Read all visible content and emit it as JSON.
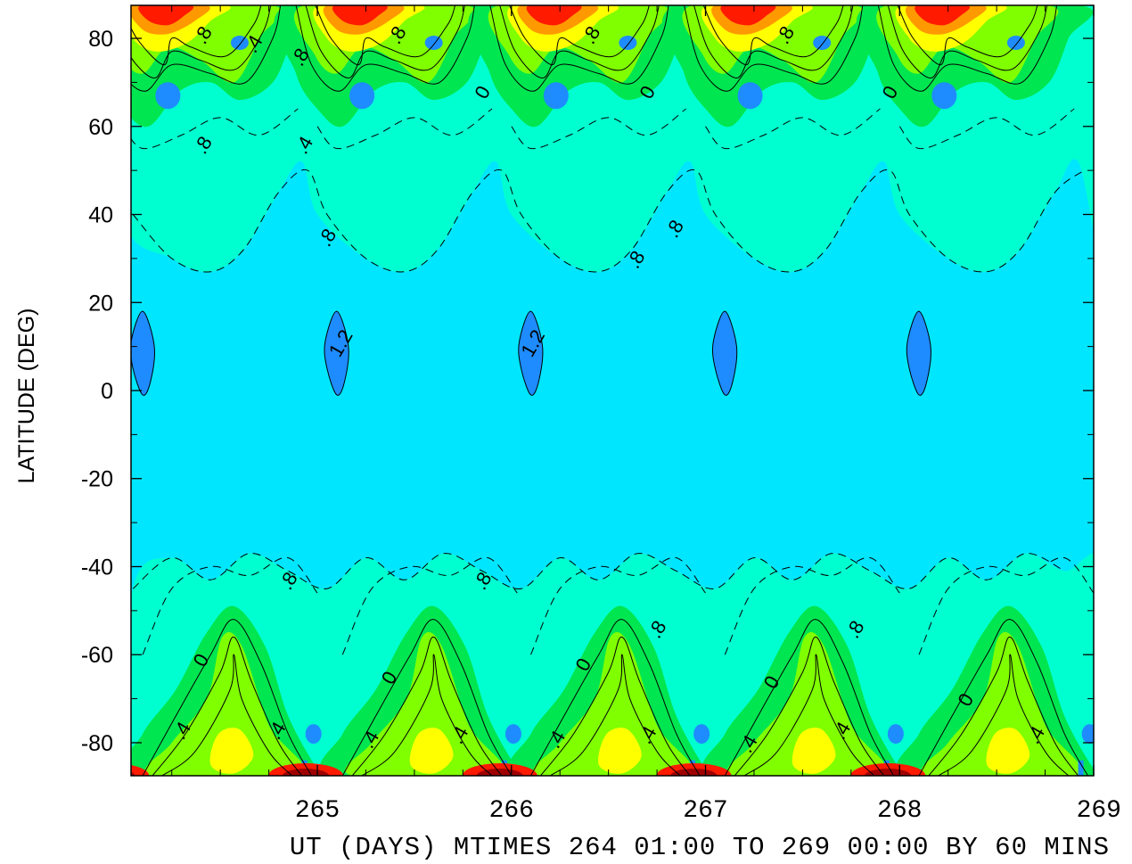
{
  "chart_data": {
    "type": "heatmap",
    "title": "",
    "ylabel": "LATITUDE (DEG)",
    "xlabel": "UT (DAYS) MTIMES 264 01:00 TO 269 00:00 BY   60 MINS",
    "xlim": [
      264.04,
      269.0
    ],
    "ylim": [
      -87.5,
      87.5
    ],
    "x_ticks": [
      265,
      266,
      267,
      268,
      269
    ],
    "x_tick_labels": [
      "265",
      "266",
      "267",
      "268",
      "269"
    ],
    "y_ticks": [
      -80,
      -60,
      -40,
      -20,
      0,
      20,
      40,
      60,
      80
    ],
    "y_tick_labels": [
      "-80",
      "-60",
      "-40",
      "-20",
      "0",
      "20",
      "40",
      "60",
      "80"
    ],
    "grid": false,
    "colors": {
      "background": "#00e6ff",
      "level_low": "#1e8cff",
      "level_mid": "#00ffd0",
      "level_green": "#00e650",
      "level_lime": "#80ff00",
      "level_yellow": "#ffff00",
      "level_orange": "#ff9900",
      "level_red": "#ff1a00",
      "level_darkred": "#a00000"
    },
    "daily_features": [
      {
        "day": 264,
        "north_max_x": 264.15,
        "south_max_x": 264.2,
        "south_yellow_x": 264.55,
        "equator_blob_x": 264.1
      },
      {
        "day": 265,
        "north_max_x": 265.15,
        "south_max_x": 265.2,
        "south_yellow_x": 265.58,
        "equator_blob_x": 265.1
      },
      {
        "day": 266,
        "north_max_x": 266.15,
        "south_max_x": 266.2,
        "south_yellow_x": 266.55,
        "equator_blob_x": 266.1
      },
      {
        "day": 267,
        "north_max_x": 267.15,
        "south_max_x": 267.2,
        "south_yellow_x": 267.55,
        "equator_blob_x": 267.1
      },
      {
        "day": 268,
        "north_max_x": 268.15,
        "south_max_x": 268.2,
        "south_yellow_x": 268.55,
        "equator_blob_x": 268.1
      }
    ],
    "contour_labels": [
      {
        "text": ".8",
        "x": 264.44,
        "y": 80
      },
      {
        "text": ".4",
        "x": 264.7,
        "y": 78
      },
      {
        "text": ".8",
        "x": 264.94,
        "y": 75
      },
      {
        "text": ".8",
        "x": 265.44,
        "y": 80
      },
      {
        "text": "0",
        "x": 265.88,
        "y": 67
      },
      {
        "text": ".8",
        "x": 266.44,
        "y": 80
      },
      {
        "text": "0",
        "x": 266.73,
        "y": 67
      },
      {
        "text": ".8",
        "x": 267.44,
        "y": 80
      },
      {
        "text": "0",
        "x": 267.98,
        "y": 67
      },
      {
        "text": ".8",
        "x": 264.44,
        "y": 55
      },
      {
        "text": ".4",
        "x": 264.96,
        "y": 55
      },
      {
        "text": ".8",
        "x": 265.08,
        "y": 34
      },
      {
        "text": ".8",
        "x": 266.67,
        "y": 29
      },
      {
        "text": ".8",
        "x": 266.87,
        "y": 36
      },
      {
        "text": "1.2",
        "x": 265.15,
        "y": 10
      },
      {
        "text": "1.2",
        "x": 266.14,
        "y": 10
      },
      {
        "text": ".8",
        "x": 264.88,
        "y": -44
      },
      {
        "text": ".8",
        "x": 265.88,
        "y": -44
      },
      {
        "text": ".8",
        "x": 266.78,
        "y": -55
      },
      {
        "text": ".8",
        "x": 267.8,
        "y": -55
      },
      {
        "text": "0",
        "x": 264.43,
        "y": -62
      },
      {
        "text": "0",
        "x": 265.4,
        "y": -66
      },
      {
        "text": "0",
        "x": 266.4,
        "y": -63
      },
      {
        "text": "0",
        "x": 267.37,
        "y": -67
      },
      {
        "text": "0",
        "x": 268.37,
        "y": -71
      },
      {
        "text": ".4",
        "x": 264.33,
        "y": -78
      },
      {
        "text": ".4",
        "x": 264.82,
        "y": -78
      },
      {
        "text": ".4",
        "x": 265.3,
        "y": -80
      },
      {
        "text": ".4",
        "x": 265.76,
        "y": -79
      },
      {
        "text": ".4",
        "x": 266.26,
        "y": -80
      },
      {
        "text": ".4",
        "x": 266.73,
        "y": -79
      },
      {
        "text": ".4",
        "x": 267.25,
        "y": -81
      },
      {
        "text": ".4",
        "x": 267.73,
        "y": -78
      },
      {
        "text": ".4",
        "x": 268.73,
        "y": -79
      }
    ]
  }
}
